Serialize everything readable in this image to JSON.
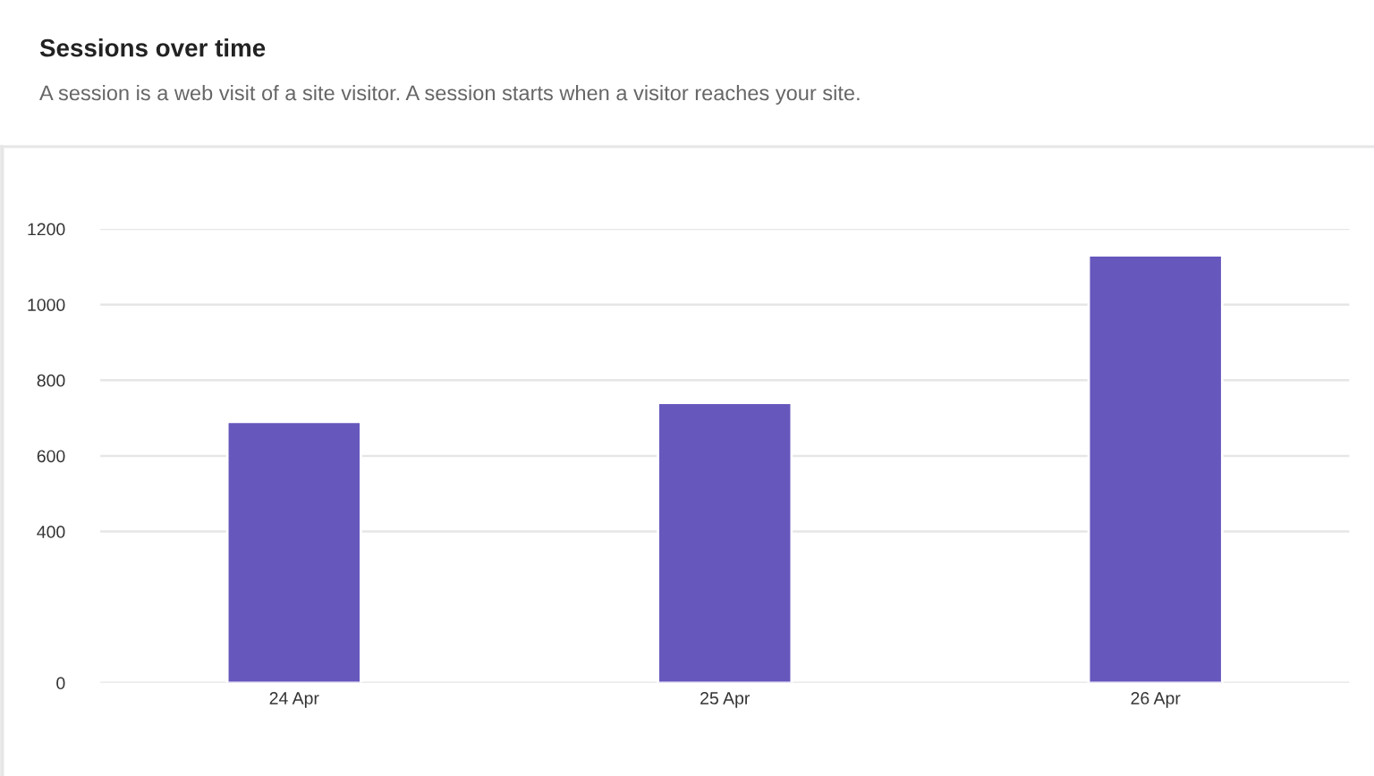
{
  "chart_data": {
    "type": "bar",
    "title": "Sessions over time",
    "subtitle": "A session is a web visit of a site visitor. A session starts when a visitor reaches your site.",
    "categories": [
      "24 Apr",
      "25 Apr",
      "26 Apr"
    ],
    "values": [
      690,
      740,
      1130
    ],
    "color": "#6657bd",
    "ylim": [
      0,
      1200
    ],
    "yticks": [
      0,
      400,
      600,
      800,
      1000,
      1200
    ],
    "grid": "y"
  }
}
